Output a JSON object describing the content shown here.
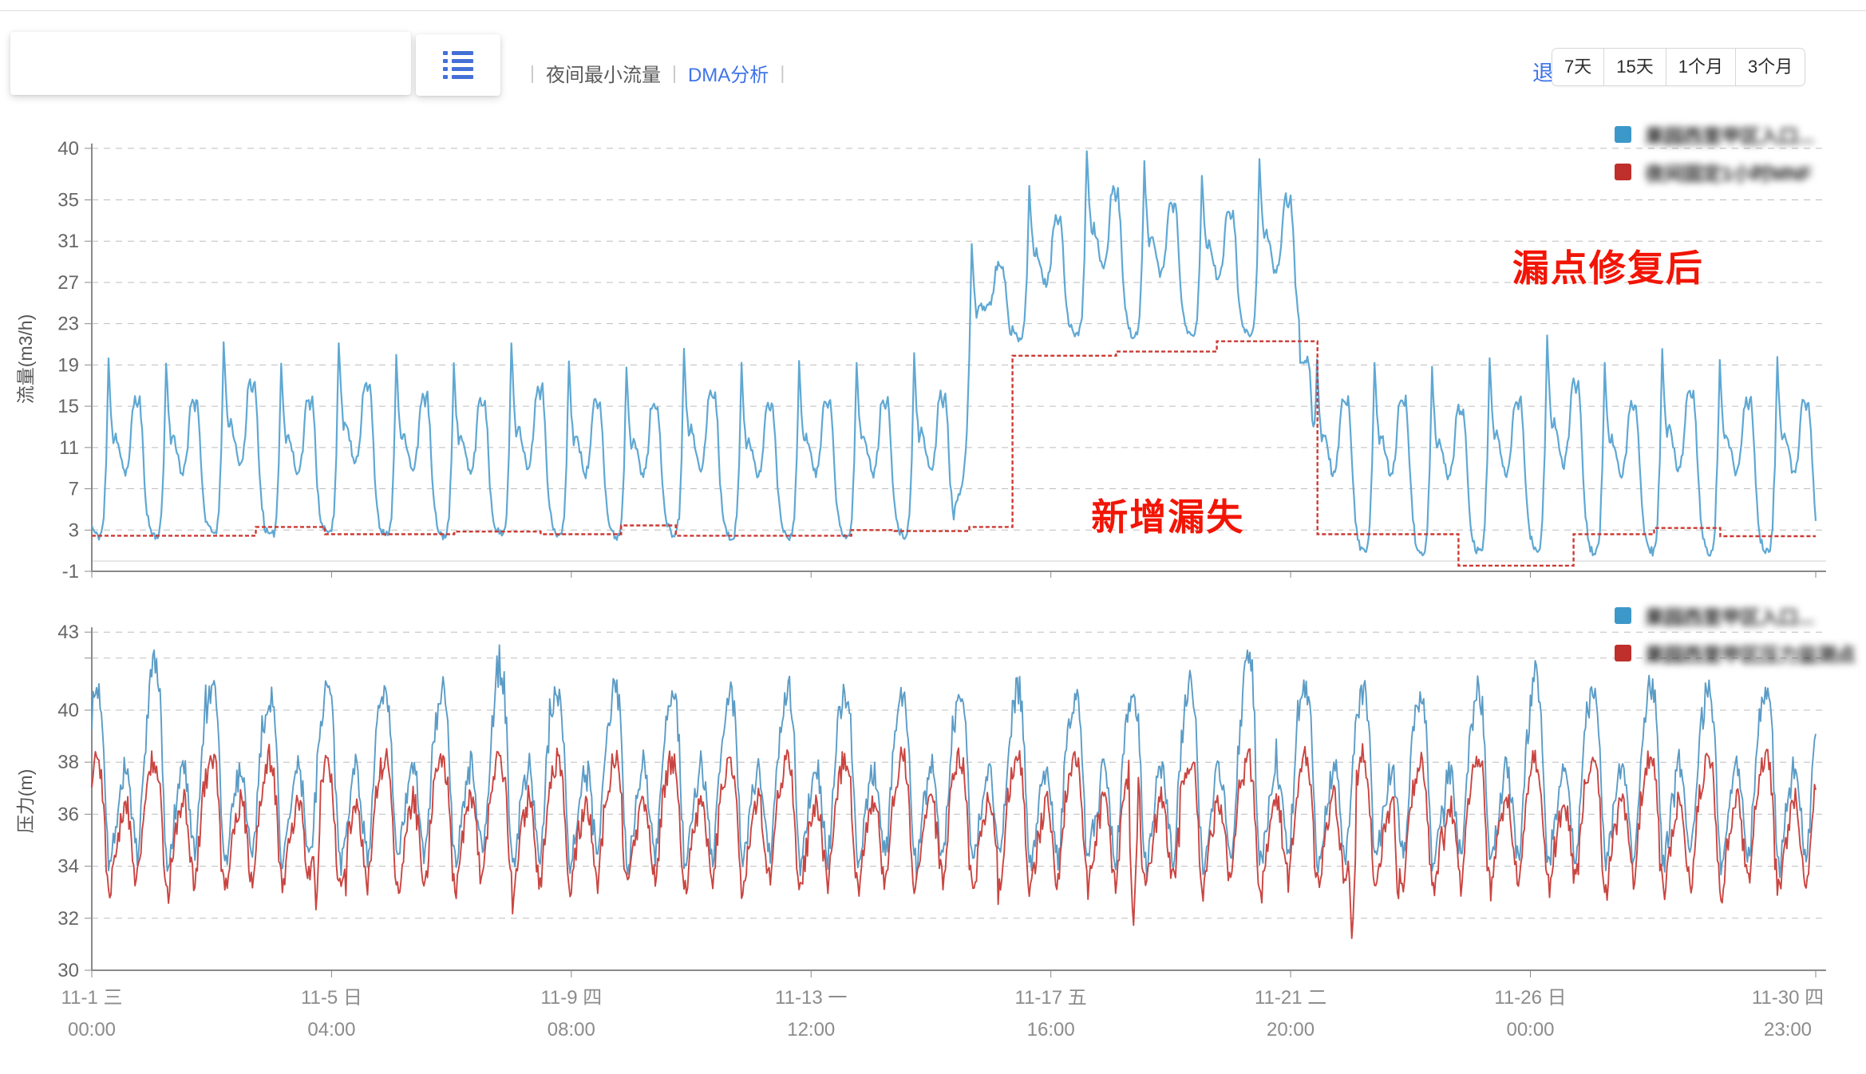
{
  "header": {
    "back_link": "退",
    "separator": "|",
    "tabs": [
      {
        "label": "夜间最小流量",
        "active": false
      },
      {
        "label": "DMA分析",
        "active": true
      }
    ],
    "range_buttons": [
      "7天",
      "15天",
      "1个月",
      "3个月"
    ],
    "accent_color": "#3f74e8",
    "list_icon_color": "#4470d6"
  },
  "x_axis": {
    "total_hours": 719,
    "ticks": [
      {
        "hour": 0,
        "date": "11-1 三",
        "time": "00:00"
      },
      {
        "hour": 100,
        "date": "11-5 日",
        "time": "04:00"
      },
      {
        "hour": 200,
        "date": "11-9 四",
        "time": "08:00"
      },
      {
        "hour": 300,
        "date": "11-13 一",
        "time": "12:00"
      },
      {
        "hour": 400,
        "date": "11-17 五",
        "time": "16:00"
      },
      {
        "hour": 500,
        "date": "11-21 二",
        "time": "20:00"
      },
      {
        "hour": 600,
        "date": "11-26 日",
        "time": "00:00"
      },
      {
        "hour": 719,
        "date": "11-30 四",
        "time": "23:00"
      }
    ]
  },
  "chart_data": [
    {
      "type": "line",
      "ylabel": "流量(m3/h)",
      "ylim": [
        -1,
        40
      ],
      "y_ticks": [
        40,
        35,
        31,
        27,
        23,
        19,
        15,
        11,
        7,
        3,
        -1
      ],
      "grid_ticks": [
        40,
        35,
        31,
        27,
        23,
        19,
        15,
        11,
        7,
        3
      ],
      "grid_dashed": true,
      "legend_position": "top-right",
      "series": [
        {
          "name": "果园西里甲区入口...",
          "color": "#3c98c9",
          "line_color": "#5fa8d3",
          "kind": "daily-pattern",
          "daily_template": [
            3.4,
            2.8,
            2.5,
            2.4,
            2.7,
            4.2,
            9.5,
            19.5,
            14.5,
            11.5,
            12.3,
            11.3,
            10.2,
            8.8,
            8.4,
            9.3,
            11.0,
            14.8,
            15.8,
            14.9,
            15.7,
            12.5,
            7.5,
            4.8
          ],
          "template_peak": 19.5,
          "day_peaks": [
            19.5,
            19.5,
            21.5,
            19.5,
            21.5,
            20,
            19.5,
            21,
            19.5,
            19,
            20.5,
            19,
            19.5,
            19.5,
            20,
            31,
            36.5,
            40,
            38.5,
            37.5,
            39,
            19.5,
            19.5,
            18.5,
            19.5,
            21.5,
            19,
            20.5,
            19.5,
            19.5
          ],
          "trough_shift": [
            0,
            0,
            0,
            0,
            0,
            0,
            0,
            0,
            0,
            0,
            0,
            0,
            0,
            0,
            0,
            0,
            0,
            0,
            0,
            0,
            0,
            -2.1,
            -2.1,
            -2.1,
            -2.1,
            -2.1,
            -2.1,
            -2.1,
            -2.1,
            -2.1
          ],
          "leak_event": {
            "start_day": 15.0,
            "ramp_in_days": 0.55,
            "end_day": 21.3,
            "ramp_out_days": 0.14,
            "offset": 19.5
          }
        },
        {
          "name": "夜间固定1小时MNF",
          "color": "#bf2f2b",
          "line_color": "#cc3a33",
          "kind": "step",
          "segments": [
            [
              0,
              2.85,
              2.45
            ],
            [
              2.85,
              4.05,
              3.3
            ],
            [
              4.05,
              6.3,
              2.6
            ],
            [
              6.3,
              7.8,
              2.85
            ],
            [
              7.8,
              9.2,
              2.6
            ],
            [
              9.2,
              10.15,
              3.45
            ],
            [
              10.15,
              13.2,
              2.45
            ],
            [
              13.2,
              13.95,
              3.0
            ],
            [
              13.95,
              15.25,
              2.9
            ],
            [
              15.25,
              16.0,
              3.3
            ],
            [
              16.0,
              17.8,
              19.9
            ],
            [
              17.8,
              19.55,
              20.3
            ],
            [
              19.55,
              21.3,
              21.3
            ],
            [
              21.3,
              23.75,
              2.6
            ],
            [
              23.75,
              25.75,
              -0.45
            ],
            [
              25.75,
              27.15,
              2.6
            ],
            [
              27.15,
              28.3,
              3.2
            ],
            [
              28.3,
              29.96,
              2.4
            ]
          ]
        }
      ],
      "annotations": [
        {
          "text": "新增漏失",
          "day": 18.7,
          "value": 4.5,
          "color": "#f21505"
        },
        {
          "text": "漏点修复后",
          "day": 26.35,
          "value": 28.6,
          "color": "#f21505"
        }
      ],
      "generation": {
        "seed": 11,
        "step_hours": 0.5,
        "jitter": 0.8
      }
    },
    {
      "type": "line",
      "ylabel": "压力(m)",
      "ylim": [
        30,
        43
      ],
      "y_ticks": [
        43,
        40,
        38,
        36,
        34,
        32,
        30
      ],
      "grid_ticks": [
        43,
        42,
        40,
        38,
        36,
        34,
        32
      ],
      "axis_tick_values": [
        43,
        42,
        40,
        38,
        36,
        34,
        32,
        30
      ],
      "grid_dashed": true,
      "legend_position": "top-right",
      "series": [
        {
          "name": "果园西里甲区入口...",
          "color": "#3c98c9",
          "line_color": "#5b9cc6",
          "kind": "daily-pattern",
          "daily_template": [
            39.6,
            40.2,
            40.5,
            40.4,
            39.9,
            38.6,
            36.2,
            34.3,
            34.0,
            34.9,
            35.6,
            36.3,
            36.9,
            37.4,
            37.9,
            37.5,
            36.8,
            35.7,
            34.8,
            34.3,
            35.1,
            36.6,
            38.1,
            39.1
          ],
          "peak_boost": [
            0.3,
            1.6,
            0.2,
            0,
            0.4,
            0.1,
            0.3,
            1.3,
            0.2,
            0.3,
            0,
            0.2,
            0.4,
            0.1,
            0.2,
            0,
            0.3,
            0.1,
            0.2,
            0.5,
            1.7,
            0.3,
            0.2,
            0.1,
            0.3,
            0.9,
            0.2,
            0.5,
            0.3,
            0.2
          ]
        },
        {
          "name": "果园西里甲区压力监测点",
          "color": "#bf2f2b",
          "line_color": "#ca4541",
          "kind": "daily-pattern",
          "daily_template": [
            37.4,
            37.9,
            38.2,
            38.0,
            37.5,
            36.3,
            34.3,
            33.3,
            33.1,
            33.9,
            34.6,
            35.2,
            35.7,
            36.2,
            36.6,
            36.3,
            35.6,
            34.7,
            33.8,
            33.4,
            34.1,
            35.3,
            36.5,
            37.1
          ],
          "spikes": [
            [
              3.9,
              32.1
            ],
            [
              18.1,
              31.5
            ],
            [
              21.9,
              31.0
            ],
            [
              22.7,
              32.3
            ]
          ]
        }
      ],
      "annotations": [],
      "generation": {
        "seed": 7,
        "step_hours": 0.5,
        "jitter": 1.1
      }
    }
  ]
}
